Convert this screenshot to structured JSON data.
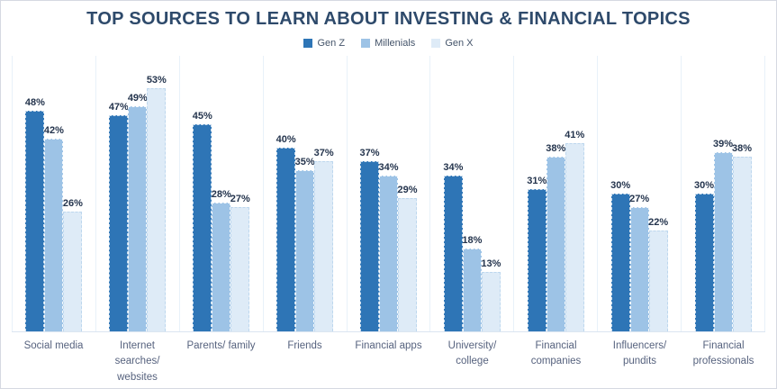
{
  "chart_data": {
    "type": "bar",
    "title": "TOP SOURCES TO LEARN ABOUT INVESTING & FINANCIAL TOPICS",
    "categories": [
      "Social media",
      "Internet searches/ websites",
      "Parents/ family",
      "Friends",
      "Financial apps",
      "University/ college",
      "Financial companies",
      "Influencers/ pundits",
      "Financial professionals"
    ],
    "series": [
      {
        "name": "Gen Z",
        "color": "#2E75B6",
        "values": [
          48,
          47,
          45,
          40,
          37,
          34,
          31,
          30,
          30
        ]
      },
      {
        "name": "Millenials",
        "color": "#9DC3E6",
        "values": [
          42,
          49,
          28,
          35,
          34,
          18,
          38,
          27,
          39
        ]
      },
      {
        "name": "Gen X",
        "color": "#DEEBF7",
        "values": [
          26,
          53,
          27,
          37,
          29,
          13,
          41,
          22,
          38
        ]
      }
    ],
    "data_label_format": "percent",
    "ylim": [
      0,
      60
    ],
    "grid": "vertical-category-separators",
    "legend_position": "top",
    "colors": {
      "title_text": "#2E4A6B",
      "data_label_text": "#24344D",
      "category_label_text": "#56627E",
      "separator_line": "#E8F1F9",
      "baseline": "#DBE5F1"
    }
  }
}
